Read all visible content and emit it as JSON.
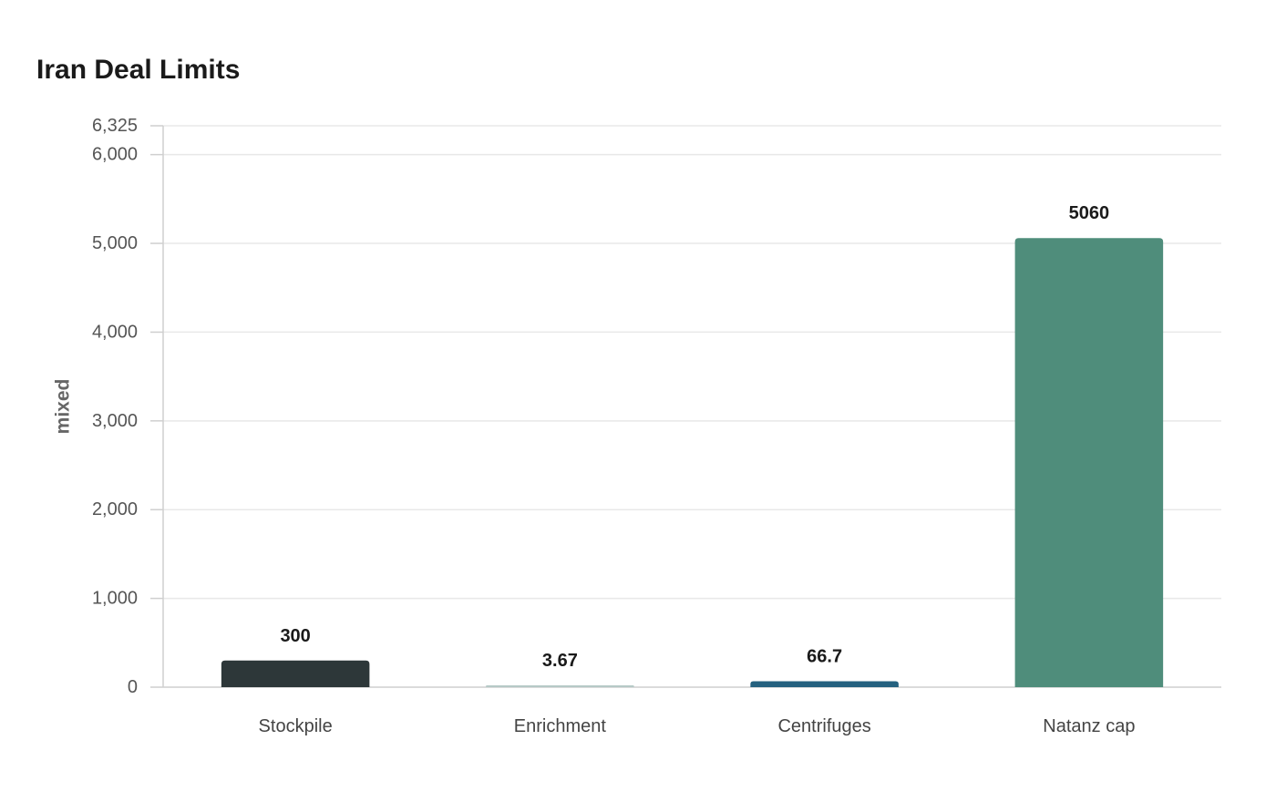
{
  "chart_data": {
    "type": "bar",
    "title": "Iran Deal Limits",
    "xlabel": "",
    "ylabel": "mixed",
    "categories": [
      "Stockpile",
      "Enrichment",
      "Centrifuges",
      "Natanz cap"
    ],
    "values": [
      300,
      3.67,
      66.7,
      5060
    ],
    "value_labels": [
      "300",
      "3.67",
      "66.7",
      "5060"
    ],
    "bar_colors": [
      "#2d3739",
      "#b6c9c6",
      "#24617f",
      "#4f8d7b"
    ],
    "ylim": [
      0,
      6325
    ],
    "yticks": [
      0,
      1000,
      2000,
      3000,
      4000,
      5000,
      6000,
      6325
    ],
    "ytick_labels": [
      "0",
      "1,000",
      "2,000",
      "3,000",
      "4,000",
      "5,000",
      "6,000",
      "6,325"
    ],
    "grid": true,
    "legend": "none"
  }
}
